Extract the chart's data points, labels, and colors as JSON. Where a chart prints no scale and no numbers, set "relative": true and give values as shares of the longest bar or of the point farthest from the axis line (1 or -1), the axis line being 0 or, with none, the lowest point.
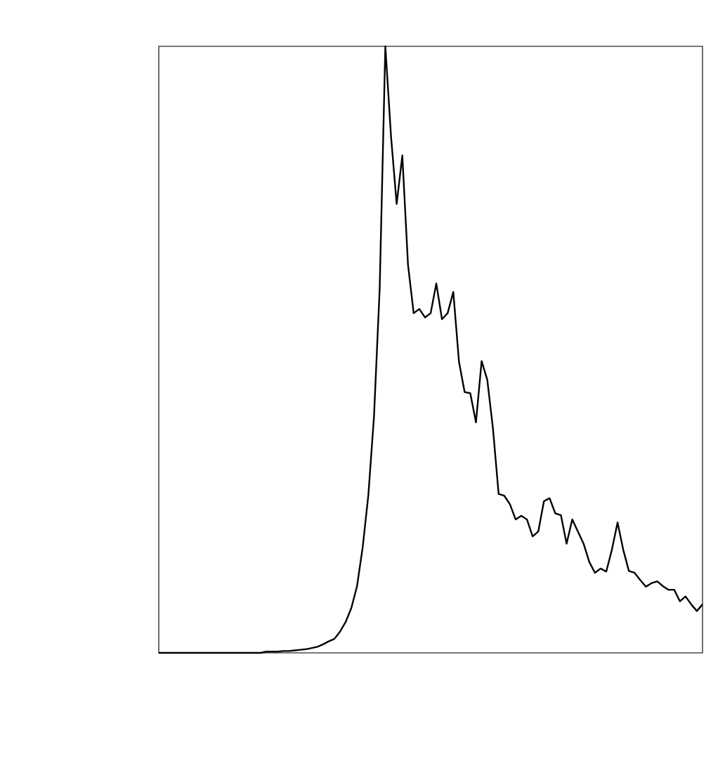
{
  "chart_data": {
    "type": "line",
    "relative": true,
    "color": "#000000",
    "categories": [
      null,
      null,
      null,
      null,
      null,
      null,
      null,
      null,
      null,
      null,
      null,
      null,
      null,
      null,
      null,
      null,
      null,
      null,
      null,
      null,
      null,
      null,
      null,
      null,
      null,
      null,
      null,
      null,
      null,
      null,
      null,
      null,
      null,
      null,
      null,
      null,
      null,
      null,
      null,
      null,
      null,
      null,
      null,
      null,
      null,
      null,
      null,
      null,
      null,
      null,
      null,
      null,
      null,
      null,
      null,
      null,
      null,
      null,
      null,
      null,
      null,
      null,
      null,
      null,
      null,
      null,
      null,
      null,
      null,
      null,
      null,
      null,
      null,
      null,
      null,
      null,
      null,
      null,
      null,
      null,
      null,
      null,
      null,
      null,
      null,
      null,
      null,
      null,
      null,
      null,
      null,
      null,
      null,
      null,
      null,
      null,
      null
    ],
    "values": [
      0,
      0,
      0,
      0,
      0,
      0,
      0,
      0,
      0,
      0,
      0,
      0,
      0,
      0,
      0,
      0,
      0,
      0,
      0,
      0.002,
      0.002,
      0.002,
      0.003,
      0.003,
      0.004,
      0.005,
      0.006,
      0.008,
      0.01,
      0.014,
      0.019,
      0.023,
      0.035,
      0.051,
      0.074,
      0.11,
      0.174,
      0.26,
      0.39,
      0.6,
      1,
      0.852,
      0.74,
      0.82,
      0.64,
      0.56,
      0.567,
      0.553,
      0.56,
      0.609,
      0.55,
      0.56,
      0.595,
      0.48,
      0.43,
      0.428,
      0.38,
      0.481,
      0.45,
      0.37,
      0.262,
      0.259,
      0.245,
      0.22,
      0.226,
      0.22,
      0.192,
      0.2,
      0.25,
      0.255,
      0.23,
      0.227,
      0.18,
      0.22,
      0.2,
      0.18,
      0.15,
      0.132,
      0.139,
      0.134,
      0.17,
      0.215,
      0.17,
      0.135,
      0.132,
      0.12,
      0.109,
      0.115,
      0.118,
      0.11,
      0.104,
      0.104,
      0.085,
      0.093,
      0.08,
      0.069,
      0.08
    ]
  }
}
